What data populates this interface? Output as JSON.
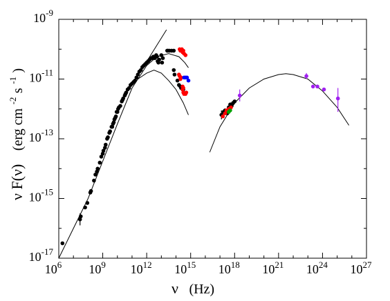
{
  "chart_data": {
    "type": "scatter",
    "title": "",
    "xlabel": {
      "main": "ν",
      "unit": "(Hz)"
    },
    "ylabel": {
      "main": "ν F(ν)",
      "unit_base": "(erg cm",
      "unit_exp1": "-2",
      "unit_mid": " s",
      "unit_exp2": "-1",
      "unit_end": ")"
    },
    "x_scale": "log",
    "y_scale": "log",
    "xlim_log10": [
      6,
      27
    ],
    "ylim_log10": [
      -17,
      -9
    ],
    "grid": false,
    "x_ticks": [
      {
        "log10": 6,
        "base": "10",
        "exp": "6"
      },
      {
        "log10": 9,
        "base": "10",
        "exp": "9"
      },
      {
        "log10": 12,
        "base": "10",
        "exp": "12"
      },
      {
        "log10": 15,
        "base": "10",
        "exp": "15"
      },
      {
        "log10": 18,
        "base": "10",
        "exp": "18"
      },
      {
        "log10": 21,
        "base": "10",
        "exp": "21"
      },
      {
        "log10": 24,
        "base": "10",
        "exp": "24"
      },
      {
        "log10": 27,
        "base": "10",
        "exp": "27"
      }
    ],
    "y_ticks": [
      {
        "log10": -17,
        "base": "10",
        "exp": "-17"
      },
      {
        "log10": -15,
        "base": "10",
        "exp": "-15"
      },
      {
        "log10": -13,
        "base": "10",
        "exp": "-13"
      },
      {
        "log10": -11,
        "base": "10",
        "exp": "-11"
      },
      {
        "log10": -9,
        "base": "10",
        "exp": "-9"
      }
    ],
    "colors": {
      "black": "#000000",
      "red": "#ff0000",
      "blue": "#0000ff",
      "green": "#00a000",
      "purple": "#a020f0"
    },
    "series": [
      {
        "color": "black",
        "points_log10": [
          [
            6.25,
            -16.5
          ],
          [
            7.45,
            -15.7
          ],
          [
            7.5,
            -15.6
          ],
          [
            7.8,
            -15.3
          ],
          [
            7.95,
            -15.15
          ],
          [
            8.15,
            -14.8
          ],
          [
            8.2,
            -14.75
          ],
          [
            8.4,
            -14.4
          ],
          [
            8.5,
            -14.2
          ],
          [
            8.6,
            -14.1
          ],
          [
            8.65,
            -14.0
          ],
          [
            8.8,
            -13.8
          ],
          [
            8.9,
            -13.6
          ],
          [
            9.0,
            -13.5
          ],
          [
            9.05,
            -13.4
          ],
          [
            9.15,
            -13.3
          ],
          [
            9.2,
            -13.2
          ],
          [
            9.3,
            -13.0
          ],
          [
            9.35,
            -12.95
          ],
          [
            9.45,
            -12.8
          ],
          [
            9.5,
            -12.75
          ],
          [
            9.6,
            -12.6
          ],
          [
            9.65,
            -12.6
          ],
          [
            9.7,
            -12.5
          ],
          [
            9.75,
            -12.45
          ],
          [
            9.8,
            -12.35
          ],
          [
            9.85,
            -12.3
          ],
          [
            9.9,
            -12.25
          ],
          [
            9.95,
            -12.1
          ],
          [
            10.0,
            -12.1
          ],
          [
            10.05,
            -12.0
          ],
          [
            10.1,
            -11.95
          ],
          [
            10.2,
            -11.9
          ],
          [
            10.3,
            -11.75
          ],
          [
            10.35,
            -11.7
          ],
          [
            10.4,
            -11.65
          ],
          [
            10.5,
            -11.55
          ],
          [
            10.55,
            -11.5
          ],
          [
            10.6,
            -11.45
          ],
          [
            10.7,
            -11.35
          ],
          [
            10.8,
            -11.3
          ],
          [
            10.9,
            -11.2
          ],
          [
            11.0,
            -11.15
          ],
          [
            11.1,
            -11.1
          ],
          [
            11.2,
            -11.05
          ],
          [
            11.3,
            -10.95
          ],
          [
            11.4,
            -10.85
          ],
          [
            11.5,
            -10.75
          ],
          [
            11.6,
            -10.7
          ],
          [
            11.7,
            -10.6
          ],
          [
            11.8,
            -10.55
          ],
          [
            11.9,
            -10.5
          ],
          [
            12.0,
            -10.45
          ],
          [
            12.1,
            -10.4
          ],
          [
            12.2,
            -10.35
          ],
          [
            12.3,
            -10.3
          ],
          [
            12.4,
            -10.3
          ],
          [
            12.45,
            -10.25
          ],
          [
            12.55,
            -10.3
          ],
          [
            12.65,
            -10.2
          ],
          [
            12.7,
            -10.25
          ],
          [
            12.75,
            -10.4
          ],
          [
            12.8,
            -10.45
          ],
          [
            12.85,
            -10.35
          ],
          [
            13.0,
            -10.2
          ],
          [
            13.05,
            -10.45
          ],
          [
            13.1,
            -10.3
          ],
          [
            13.4,
            -10.05
          ],
          [
            13.45,
            -10.05
          ],
          [
            13.55,
            -10.05
          ],
          [
            13.7,
            -10.05
          ],
          [
            13.85,
            -10.05
          ],
          [
            13.85,
            -10.7
          ],
          [
            13.9,
            -10.85
          ],
          [
            14.1,
            -11.05
          ],
          [
            14.2,
            -11.2
          ],
          [
            14.3,
            -11.25
          ],
          [
            14.35,
            -11.3
          ],
          [
            14.4,
            -11.3
          ],
          [
            14.45,
            -11.35
          ],
          [
            14.5,
            -11.35
          ],
          [
            17.1,
            -12.2
          ],
          [
            17.25,
            -12.1
          ],
          [
            17.35,
            -12.05
          ],
          [
            17.5,
            -12.15
          ],
          [
            17.6,
            -11.95
          ],
          [
            17.7,
            -11.85
          ],
          [
            17.75,
            -11.85
          ],
          [
            17.8,
            -11.9
          ],
          [
            17.9,
            -11.8
          ],
          [
            18.0,
            -11.75
          ]
        ]
      },
      {
        "color": "red",
        "points_log10": [
          [
            14.2,
            -10.85
          ],
          [
            14.25,
            -10.9
          ],
          [
            14.3,
            -11.0
          ],
          [
            14.35,
            -10.95
          ],
          [
            14.45,
            -11.25
          ],
          [
            14.45,
            -11.35
          ],
          [
            14.5,
            -11.3
          ],
          [
            14.5,
            -11.45
          ],
          [
            14.55,
            -11.5
          ],
          [
            14.65,
            -11.5
          ],
          [
            14.7,
            -11.45
          ],
          [
            14.25,
            -10.0
          ],
          [
            14.3,
            -10.05
          ],
          [
            14.4,
            -10.0
          ],
          [
            14.45,
            -10.1
          ],
          [
            14.5,
            -10.05
          ],
          [
            14.55,
            -10.15
          ],
          [
            14.65,
            -10.2
          ],
          [
            17.2,
            -12.25
          ],
          [
            17.35,
            -12.15
          ],
          [
            17.45,
            -12.05
          ],
          [
            17.6,
            -12.0
          ],
          [
            17.75,
            -11.95
          ]
        ]
      },
      {
        "color": "blue",
        "points_log10": [
          [
            14.55,
            -10.95
          ],
          [
            14.65,
            -10.95
          ],
          [
            14.75,
            -10.95
          ],
          [
            14.85,
            -11.05
          ]
        ]
      },
      {
        "color": "green",
        "points_log10": [
          [
            17.6,
            -12.1
          ],
          [
            17.7,
            -12.05
          ]
        ]
      },
      {
        "color": "purple",
        "points_log10": [
          [
            18.35,
            -11.55
          ],
          [
            22.9,
            -10.9
          ],
          [
            23.35,
            -11.25
          ],
          [
            23.65,
            -11.25
          ],
          [
            24.1,
            -11.35
          ],
          [
            25.05,
            -11.65
          ]
        ]
      }
    ],
    "curves": [
      {
        "name_hint": "",
        "points_log10": [
          [
            6.0,
            -17.0
          ],
          [
            8.0,
            -15.0
          ],
          [
            10.0,
            -12.5
          ],
          [
            11.0,
            -11.3
          ],
          [
            12.0,
            -10.55
          ],
          [
            12.7,
            -10.25
          ],
          [
            13.5,
            -10.15
          ],
          [
            14.2,
            -10.25
          ],
          [
            14.6,
            -10.45
          ],
          [
            14.85,
            -10.62
          ]
        ]
      },
      {
        "name_hint": "",
        "points_log10": [
          [
            11.4,
            -11.0
          ],
          [
            12.0,
            -10.8
          ],
          [
            12.5,
            -10.7
          ],
          [
            13.0,
            -10.8
          ],
          [
            13.5,
            -11.05
          ],
          [
            14.0,
            -11.35
          ],
          [
            14.5,
            -11.8
          ],
          [
            14.85,
            -12.2
          ]
        ]
      },
      {
        "name_hint": "",
        "points_log10": [
          [
            11.0,
            -11.2
          ],
          [
            13.35,
            -9.35
          ]
        ]
      },
      {
        "name_hint": "",
        "points_log10": [
          [
            16.3,
            -13.45
          ],
          [
            17.0,
            -12.6
          ],
          [
            18.0,
            -11.8
          ],
          [
            19.0,
            -11.3
          ],
          [
            20.0,
            -11.0
          ],
          [
            21.0,
            -10.85
          ],
          [
            21.5,
            -10.82
          ],
          [
            22.0,
            -10.85
          ],
          [
            23.0,
            -11.0
          ],
          [
            24.0,
            -11.4
          ],
          [
            25.0,
            -11.95
          ],
          [
            25.8,
            -12.55
          ]
        ]
      }
    ],
    "errorbars_log10": [
      {
        "color": "black",
        "x": 7.45,
        "y_lo": -15.9,
        "y_hi": -15.5
      },
      {
        "color": "black",
        "x": 17.1,
        "y_lo": -12.35,
        "y_hi": -12.05
      },
      {
        "color": "purple",
        "x": 18.35,
        "y_lo": -11.75,
        "y_hi": -11.35
      },
      {
        "color": "purple",
        "x": 22.9,
        "y_lo": -11.0,
        "y_hi": -10.8
      },
      {
        "color": "purple",
        "x": 25.05,
        "y_lo": -12.1,
        "y_hi": -11.3
      }
    ]
  }
}
